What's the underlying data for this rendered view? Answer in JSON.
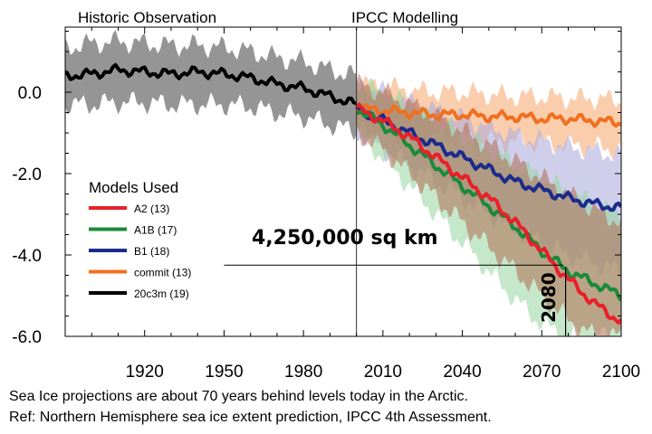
{
  "chart_data": {
    "type": "line",
    "title": "",
    "xlabel": "",
    "ylabel": "",
    "xlim": [
      1890,
      2100
    ],
    "ylim": [
      -6.0,
      1.6
    ],
    "x_ticks": [
      1920,
      1950,
      1980,
      2010,
      2040,
      2070,
      2100
    ],
    "x_tick_labels": [
      "1920",
      "1950",
      "1980",
      "2010",
      "2040",
      "2070",
      "2100"
    ],
    "y_ticks": [
      0.0,
      -2.0,
      -4.0,
      -6.0
    ],
    "y_tick_labels": [
      "0.0",
      "-2.0",
      "-4.0",
      "-6.0"
    ],
    "grid": false,
    "divider_x": 2000,
    "period_labels": {
      "historic": "Historic Observation",
      "model": "IPCC Modelling"
    },
    "legend": {
      "title": "Models Used",
      "placement": "left",
      "entries": [
        {
          "label": "A2 (13)",
          "color": "#e8202a"
        },
        {
          "label": "A1B (17)",
          "color": "#1a8a3a"
        },
        {
          "label": "B1 (18)",
          "color": "#1c2b8c"
        },
        {
          "label": "commit (13)",
          "color": "#f07020"
        },
        {
          "label": "20c3m (19)",
          "color": "#000000"
        }
      ]
    },
    "series": [
      {
        "name": "20c3m (19)",
        "color": "#000000",
        "band_color": "#8a8a8a",
        "x": [
          1890,
          1900,
          1910,
          1920,
          1930,
          1940,
          1950,
          1960,
          1970,
          1980,
          1990,
          2000
        ],
        "y": [
          0.4,
          0.45,
          0.55,
          0.5,
          0.45,
          0.5,
          0.45,
          0.35,
          0.2,
          0.1,
          -0.1,
          -0.3
        ],
        "lower": [
          -0.3,
          -0.3,
          -0.25,
          -0.25,
          -0.3,
          -0.3,
          -0.3,
          -0.35,
          -0.5,
          -0.6,
          -0.8,
          -0.95
        ],
        "upper": [
          1.1,
          1.2,
          1.25,
          1.2,
          1.15,
          1.15,
          1.1,
          1.0,
          0.85,
          0.75,
          0.55,
          0.4
        ]
      },
      {
        "name": "commit (13)",
        "color": "#f07020",
        "band_color": "#f5a66a",
        "x": [
          2000,
          2010,
          2020,
          2030,
          2040,
          2050,
          2060,
          2070,
          2080,
          2090,
          2100
        ],
        "y": [
          -0.4,
          -0.45,
          -0.5,
          -0.55,
          -0.55,
          -0.6,
          -0.6,
          -0.65,
          -0.65,
          -0.7,
          -0.75
        ],
        "lower": [
          -0.95,
          -1.0,
          -1.05,
          -1.1,
          -1.15,
          -1.2,
          -1.2,
          -1.25,
          -1.3,
          -1.35,
          -1.4
        ],
        "upper": [
          0.2,
          0.15,
          0.05,
          0.0,
          0.0,
          -0.05,
          -0.1,
          -0.1,
          -0.15,
          -0.15,
          -0.2
        ]
      },
      {
        "name": "B1 (18)",
        "color": "#1c2b8c",
        "band_color": "#a8a8dc",
        "x": [
          2000,
          2010,
          2020,
          2030,
          2040,
          2050,
          2060,
          2070,
          2080,
          2090,
          2100
        ],
        "y": [
          -0.4,
          -0.7,
          -1.0,
          -1.3,
          -1.6,
          -1.9,
          -2.2,
          -2.4,
          -2.6,
          -2.75,
          -2.85
        ],
        "lower": [
          -1.0,
          -1.4,
          -1.8,
          -2.2,
          -2.6,
          -3.0,
          -3.4,
          -3.7,
          -4.0,
          -4.2,
          -4.4
        ],
        "upper": [
          0.2,
          0.0,
          -0.25,
          -0.45,
          -0.65,
          -0.85,
          -1.05,
          -1.2,
          -1.35,
          -1.45,
          -1.55
        ]
      },
      {
        "name": "A1B (17)",
        "color": "#1a8a3a",
        "band_color": "#96d6a0",
        "x": [
          2000,
          2010,
          2020,
          2030,
          2040,
          2050,
          2060,
          2070,
          2080,
          2090,
          2100
        ],
        "y": [
          -0.4,
          -0.8,
          -1.3,
          -1.8,
          -2.3,
          -2.8,
          -3.3,
          -3.9,
          -4.4,
          -4.7,
          -5.0
        ],
        "lower": [
          -1.0,
          -1.6,
          -2.3,
          -3.0,
          -3.7,
          -4.4,
          -5.1,
          -5.7,
          -6.0,
          -6.0,
          -6.0
        ],
        "upper": [
          0.2,
          0.0,
          -0.35,
          -0.7,
          -1.05,
          -1.4,
          -1.75,
          -2.1,
          -2.45,
          -2.75,
          -3.0
        ]
      },
      {
        "name": "A2 (13)",
        "color": "#e8202a",
        "band_color": "#b06c50",
        "x": [
          2000,
          2010,
          2020,
          2030,
          2040,
          2050,
          2060,
          2070,
          2080,
          2090,
          2100
        ],
        "y": [
          -0.4,
          -0.7,
          -1.1,
          -1.6,
          -2.1,
          -2.6,
          -3.2,
          -3.9,
          -4.6,
          -5.2,
          -5.65
        ],
        "lower": [
          -1.0,
          -1.4,
          -2.0,
          -2.6,
          -3.2,
          -3.8,
          -4.4,
          -5.0,
          -5.6,
          -6.0,
          -6.0
        ],
        "upper": [
          0.2,
          0.0,
          -0.3,
          -0.6,
          -0.95,
          -1.3,
          -1.7,
          -2.1,
          -2.5,
          -2.9,
          -3.2
        ]
      }
    ],
    "annotations": [
      {
        "text": "4,250,000 sq km",
        "x": 1950,
        "y": -3.6,
        "line_y": -4.25,
        "line_x_start": 1950,
        "line_x_end": 2078
      },
      {
        "text": "2080",
        "x": 2080,
        "y": -5.0,
        "rotated": true,
        "line_x": 2079,
        "line_y_start": -4.3,
        "line_y_end": -6.0
      }
    ]
  },
  "caption": {
    "line1": "Sea Ice projections are about 70 years behind levels today in the Arctic.",
    "line2": "Ref: Northern Hemisphere sea ice extent prediction, IPCC 4th Assessment."
  }
}
